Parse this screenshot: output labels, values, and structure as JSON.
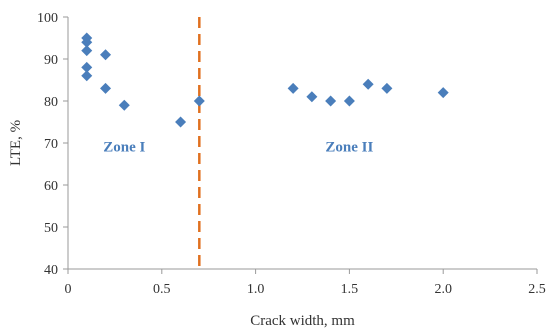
{
  "chart_data": {
    "type": "scatter",
    "xlabel": "Crack width, mm",
    "ylabel": "LTE, %",
    "xlim": [
      0,
      2.5
    ],
    "ylim": [
      40,
      100
    ],
    "xticks": [
      0,
      0.5,
      1.0,
      1.5,
      2.0,
      2.5
    ],
    "xtick_labels": [
      "0",
      "0.5",
      "1.0",
      "1.5",
      "2.0",
      "2.5"
    ],
    "yticks": [
      40,
      50,
      60,
      70,
      80,
      90,
      100
    ],
    "ytick_labels": [
      "40",
      "50",
      "60",
      "70",
      "80",
      "90",
      "100"
    ],
    "grid": false,
    "marker": "diamond",
    "marker_color": "#4a7ebb",
    "points": [
      {
        "x": 0.1,
        "y": 95
      },
      {
        "x": 0.1,
        "y": 94
      },
      {
        "x": 0.1,
        "y": 92
      },
      {
        "x": 0.1,
        "y": 88
      },
      {
        "x": 0.1,
        "y": 86
      },
      {
        "x": 0.2,
        "y": 91
      },
      {
        "x": 0.2,
        "y": 83
      },
      {
        "x": 0.3,
        "y": 79
      },
      {
        "x": 0.6,
        "y": 75
      },
      {
        "x": 0.7,
        "y": 80
      },
      {
        "x": 1.2,
        "y": 83
      },
      {
        "x": 1.3,
        "y": 81
      },
      {
        "x": 1.4,
        "y": 80
      },
      {
        "x": 1.5,
        "y": 80
      },
      {
        "x": 1.6,
        "y": 84
      },
      {
        "x": 1.7,
        "y": 83
      },
      {
        "x": 2.0,
        "y": 82
      }
    ],
    "boundary": {
      "x": 0.7,
      "style": "dashed",
      "color": "#e07020"
    },
    "annotations": [
      {
        "text": "Zone I",
        "x": 0.3,
        "y": 68,
        "color": "#4a7ebb"
      },
      {
        "text": "Zone II",
        "x": 1.5,
        "y": 68,
        "color": "#4a7ebb"
      }
    ]
  }
}
